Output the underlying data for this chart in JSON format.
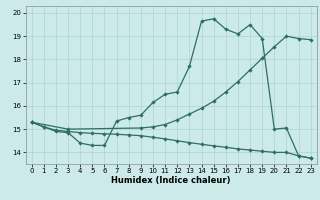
{
  "xlabel": "Humidex (Indice chaleur)",
  "bg_color": "#cceaea",
  "grid_color": "#aad4d4",
  "line_color": "#2e6e65",
  "xlim": [
    -0.5,
    23.5
  ],
  "ylim": [
    13.5,
    20.3
  ],
  "yticks": [
    14,
    15,
    16,
    17,
    18,
    19,
    20
  ],
  "xticks": [
    0,
    1,
    2,
    3,
    4,
    5,
    6,
    7,
    8,
    9,
    10,
    11,
    12,
    13,
    14,
    15,
    16,
    17,
    18,
    19,
    20,
    21,
    22,
    23
  ],
  "line1_x": [
    0,
    1,
    2,
    3,
    4,
    5,
    6,
    7,
    8,
    9,
    10,
    11,
    12,
    13,
    14,
    15,
    16,
    17,
    18,
    19,
    20,
    21,
    22,
    23
  ],
  "line1_y": [
    15.3,
    15.1,
    14.9,
    14.85,
    14.4,
    14.3,
    14.3,
    15.35,
    15.5,
    15.6,
    16.15,
    16.5,
    16.6,
    17.7,
    19.65,
    19.75,
    19.3,
    19.1,
    19.5,
    18.9,
    15.0,
    15.05,
    13.85,
    13.75
  ],
  "line2_x": [
    0,
    3,
    9,
    10,
    11,
    12,
    13,
    14,
    15,
    16,
    17,
    18,
    19,
    20,
    21,
    22,
    23
  ],
  "line2_y": [
    15.3,
    15.0,
    15.05,
    15.1,
    15.2,
    15.4,
    15.65,
    15.9,
    16.2,
    16.6,
    17.05,
    17.55,
    18.05,
    18.55,
    19.0,
    18.9,
    18.85
  ],
  "line3_x": [
    0,
    1,
    2,
    3,
    4,
    5,
    6,
    7,
    8,
    9,
    10,
    11,
    12,
    13,
    14,
    15,
    16,
    17,
    18,
    19,
    20,
    21,
    22,
    23
  ],
  "line3_y": [
    15.3,
    15.1,
    14.95,
    14.9,
    14.85,
    14.82,
    14.8,
    14.78,
    14.75,
    14.72,
    14.65,
    14.58,
    14.5,
    14.42,
    14.35,
    14.28,
    14.22,
    14.15,
    14.1,
    14.05,
    14.0,
    14.0,
    13.85,
    13.75
  ]
}
